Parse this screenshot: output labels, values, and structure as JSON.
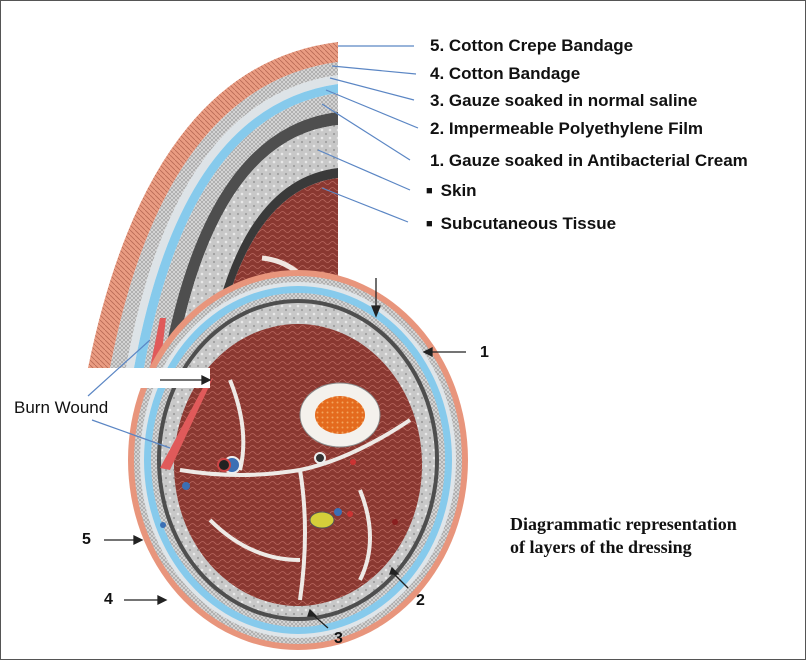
{
  "layer_labels": [
    "5. Cotton Crepe Bandage",
    "4. Cotton Bandage",
    "3. Gauze soaked in normal saline",
    "2. Impermeable Polyethylene Film",
    "1. Gauze soaked in Antibacterial Cream"
  ],
  "tissue_labels": [
    "Skin",
    "Subcutaneous Tissue"
  ],
  "burn_wound_label": "Burn Wound",
  "cross_section_numbers": [
    "1",
    "2",
    "3",
    "4",
    "5"
  ],
  "caption": [
    "Diagrammatic representation",
    "of layers of the dressing"
  ],
  "colors": {
    "crepe": "#e89a80",
    "gauze": "#d3dde3",
    "film": "#7fc6ea",
    "skin": "#4a4a4a",
    "subcutaneous": "#c9c9c9",
    "muscle": "#8e3b35",
    "bone_marrow": "#e46a1e",
    "leader_line": "#5b86c4",
    "burn": "#d9534f"
  }
}
